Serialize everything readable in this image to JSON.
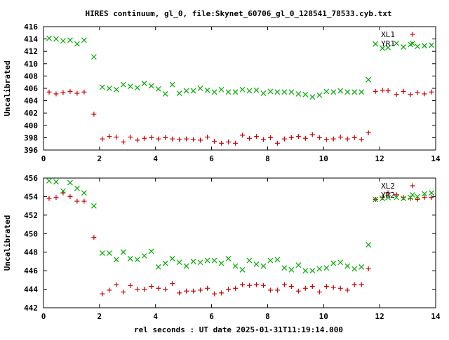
{
  "chart_data": [
    {
      "type": "scatter",
      "title": "HIRES continuum, gl_0, file:Skynet_60706_gl_0_128541_78533.cyb.txt",
      "xlabel": "",
      "ylabel": "Uncalibrated",
      "xlim": [
        0,
        14
      ],
      "ylim": [
        396,
        416
      ],
      "xticks": [
        "0",
        "2",
        "4",
        "6",
        "8",
        "10",
        "12",
        "14"
      ],
      "yticks": [
        "396",
        "398",
        "400",
        "402",
        "404",
        "406",
        "408",
        "410",
        "412",
        "414",
        "416"
      ],
      "grid": false,
      "legend_position": "top-right",
      "series": [
        {
          "name": "XL1",
          "marker": "plus",
          "color": "#cc0000",
          "x": [
            0.2,
            0.45,
            0.7,
            0.95,
            1.2,
            1.45,
            1.8,
            2.1,
            2.35,
            2.6,
            2.85,
            3.1,
            3.35,
            3.6,
            3.85,
            4.1,
            4.35,
            4.6,
            4.85,
            5.1,
            5.35,
            5.6,
            5.85,
            6.1,
            6.35,
            6.6,
            6.85,
            7.1,
            7.35,
            7.6,
            7.85,
            8.1,
            8.35,
            8.6,
            8.85,
            9.1,
            9.35,
            9.6,
            9.85,
            10.1,
            10.35,
            10.6,
            10.85,
            11.1,
            11.35,
            11.6,
            11.85,
            12.1,
            12.3,
            12.6,
            12.85,
            13.1,
            13.35,
            13.6,
            13.85
          ],
          "y": [
            405.4,
            405.1,
            405.3,
            405.5,
            405.2,
            405.4,
            401.8,
            397.8,
            398.2,
            398.1,
            397.3,
            398.1,
            397.6,
            397.9,
            398.0,
            397.8,
            398.0,
            397.8,
            397.7,
            397.8,
            397.7,
            397.6,
            398.1,
            397.4,
            397.1,
            397.3,
            397.1,
            398.4,
            397.9,
            398.2,
            397.7,
            398.0,
            397.1,
            397.8,
            398.0,
            398.2,
            397.9,
            398.5,
            398.0,
            397.7,
            397.8,
            398.1,
            397.8,
            398.0,
            397.7,
            398.8,
            405.5,
            405.7,
            405.6,
            405.0,
            405.5,
            405.0,
            405.3,
            405.1,
            405.4
          ]
        },
        {
          "name": "YR1",
          "marker": "cross",
          "color": "#00aa00",
          "x": [
            0.2,
            0.45,
            0.7,
            0.95,
            1.2,
            1.45,
            1.8,
            2.1,
            2.35,
            2.6,
            2.85,
            3.1,
            3.35,
            3.6,
            3.85,
            4.1,
            4.35,
            4.6,
            4.85,
            5.1,
            5.35,
            5.6,
            5.85,
            6.1,
            6.35,
            6.6,
            6.85,
            7.1,
            7.35,
            7.6,
            7.85,
            8.1,
            8.35,
            8.6,
            8.85,
            9.1,
            9.35,
            9.6,
            9.85,
            10.1,
            10.35,
            10.6,
            10.85,
            11.1,
            11.35,
            11.6,
            11.85,
            12.1,
            12.3,
            12.6,
            12.85,
            13.1,
            13.35,
            13.6,
            13.85
          ],
          "y": [
            414.1,
            414.0,
            413.7,
            413.8,
            413.2,
            413.8,
            411.1,
            406.2,
            406.0,
            405.8,
            406.6,
            406.3,
            406.1,
            406.8,
            406.4,
            405.9,
            405.1,
            406.6,
            405.2,
            405.6,
            405.6,
            406.0,
            405.7,
            405.4,
            405.8,
            405.4,
            405.4,
            405.8,
            405.6,
            405.7,
            405.2,
            405.5,
            405.4,
            405.4,
            405.4,
            405.1,
            405.0,
            404.6,
            404.9,
            405.5,
            405.4,
            405.6,
            405.4,
            405.4,
            405.4,
            407.4,
            413.2,
            412.5,
            412.6,
            413.3,
            412.7,
            413.1,
            412.8,
            412.9,
            413.0
          ]
        }
      ]
    },
    {
      "type": "scatter",
      "title": "",
      "xlabel": "rel seconds : UT date 2025-01-31T11:19:14.000",
      "ylabel": "Uncalibrated",
      "xlim": [
        0,
        14
      ],
      "ylim": [
        442,
        456
      ],
      "xticks": [
        "0",
        "2",
        "4",
        "6",
        "8",
        "10",
        "12",
        "14"
      ],
      "yticks": [
        "442",
        "444",
        "446",
        "448",
        "450",
        "452",
        "454",
        "456"
      ],
      "grid": false,
      "legend_position": "top-right",
      "series": [
        {
          "name": "XL2",
          "marker": "plus",
          "color": "#cc0000",
          "x": [
            0.2,
            0.45,
            0.7,
            0.95,
            1.2,
            1.45,
            1.8,
            2.1,
            2.35,
            2.6,
            2.85,
            3.1,
            3.35,
            3.6,
            3.85,
            4.1,
            4.35,
            4.6,
            4.85,
            5.1,
            5.35,
            5.6,
            5.85,
            6.1,
            6.35,
            6.6,
            6.85,
            7.1,
            7.35,
            7.6,
            7.85,
            8.1,
            8.35,
            8.6,
            8.85,
            9.1,
            9.35,
            9.6,
            9.85,
            10.1,
            10.35,
            10.6,
            10.85,
            11.1,
            11.35,
            11.6,
            11.85,
            12.1,
            12.3,
            12.6,
            12.85,
            13.1,
            13.35,
            13.6,
            13.85
          ],
          "y": [
            453.8,
            453.9,
            454.4,
            454.0,
            453.5,
            453.5,
            449.6,
            443.5,
            443.9,
            444.5,
            443.7,
            444.4,
            444.0,
            444.0,
            444.3,
            444.1,
            444.0,
            444.6,
            443.6,
            443.8,
            443.8,
            443.9,
            444.1,
            443.5,
            443.6,
            444.0,
            444.1,
            444.5,
            444.4,
            444.5,
            444.4,
            443.9,
            443.9,
            444.5,
            444.3,
            443.8,
            444.1,
            444.3,
            443.7,
            444.3,
            444.2,
            444.1,
            443.9,
            444.5,
            444.5,
            446.2,
            453.7,
            453.9,
            454.4,
            454.2,
            453.9,
            453.8,
            453.7,
            453.9,
            453.9
          ]
        },
        {
          "name": "YR2",
          "marker": "cross",
          "color": "#00aa00",
          "x": [
            0.2,
            0.45,
            0.7,
            0.95,
            1.2,
            1.45,
            1.8,
            2.1,
            2.35,
            2.6,
            2.85,
            3.1,
            3.35,
            3.6,
            3.85,
            4.1,
            4.35,
            4.6,
            4.85,
            5.1,
            5.35,
            5.6,
            5.85,
            6.1,
            6.35,
            6.6,
            6.85,
            7.1,
            7.35,
            7.6,
            7.85,
            8.1,
            8.35,
            8.6,
            8.85,
            9.1,
            9.35,
            9.6,
            9.85,
            10.1,
            10.35,
            10.6,
            10.85,
            11.1,
            11.35,
            11.6,
            11.85,
            12.1,
            12.3,
            12.6,
            12.85,
            13.1,
            13.35,
            13.6,
            13.85
          ],
          "y": [
            455.7,
            455.6,
            454.6,
            455.5,
            454.9,
            454.4,
            453.0,
            447.9,
            447.9,
            447.2,
            448.0,
            447.3,
            447.2,
            447.6,
            448.1,
            446.4,
            446.8,
            447.3,
            446.9,
            446.5,
            447.0,
            446.9,
            447.1,
            447.1,
            446.8,
            447.3,
            446.5,
            446.1,
            447.1,
            446.7,
            446.5,
            447.1,
            447.2,
            446.3,
            446.1,
            446.6,
            446.0,
            446.0,
            446.2,
            446.3,
            446.8,
            446.9,
            446.5,
            446.2,
            446.4,
            448.8,
            453.7,
            453.8,
            453.9,
            453.9,
            453.8,
            453.9,
            454.0,
            454.3,
            454.4
          ]
        }
      ]
    }
  ]
}
